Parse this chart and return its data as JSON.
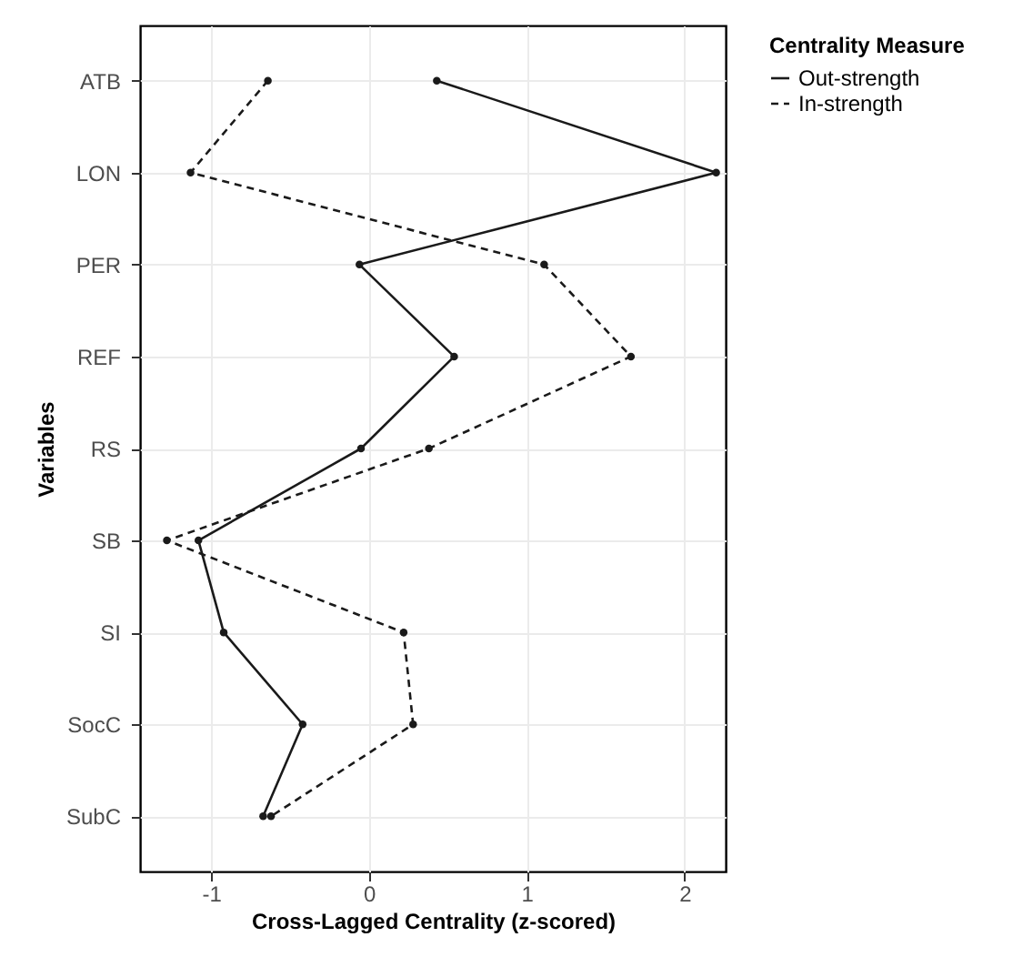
{
  "chart_data": {
    "type": "line",
    "orientation": "horizontal",
    "xlabel": "Cross-Lagged Centrality (z-scored)",
    "ylabel": "Variables",
    "legend_title": "Centrality Measure",
    "categories": [
      "ATB",
      "LON",
      "PER",
      "REF",
      "RS",
      "SB",
      "SI",
      "SocC",
      "SubC"
    ],
    "series": [
      {
        "name": "Out-strength",
        "color": "#1a1a1a",
        "line_style": "solid",
        "values": [
          0.43,
          2.2,
          -0.06,
          0.54,
          -0.05,
          -1.08,
          -0.92,
          -0.42,
          -0.67
        ]
      },
      {
        "name": "In-strength",
        "color": "#1a1a1a",
        "line_style": "dashed",
        "values": [
          -0.64,
          -1.13,
          1.11,
          1.66,
          0.38,
          -1.28,
          0.22,
          0.28,
          -0.62
        ]
      }
    ],
    "xlim": [
      -1.45,
      2.26
    ],
    "xticks": [
      -1,
      0,
      1,
      2
    ],
    "grid": true,
    "legend": "right",
    "marker": "circle"
  }
}
